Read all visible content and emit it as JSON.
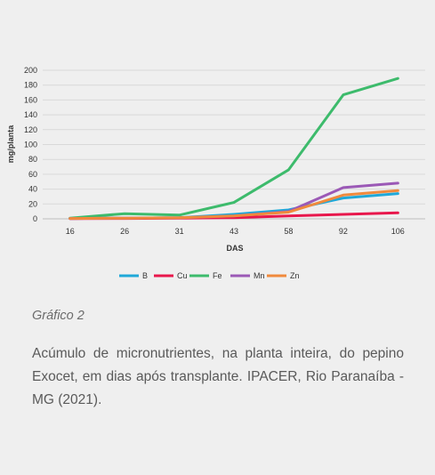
{
  "chart_data": {
    "type": "line",
    "categories": [
      "16",
      "26",
      "31",
      "43",
      "58",
      "92",
      "106"
    ],
    "xlabel": "DAS",
    "ylabel": "mg/planta",
    "ylim": [
      0,
      200
    ],
    "yticks": [
      0,
      20,
      40,
      60,
      80,
      100,
      120,
      140,
      160,
      180,
      200
    ],
    "grid": true,
    "legend_position": "bottom",
    "series": [
      {
        "name": "B",
        "color": "#1fa8d8",
        "values": [
          0.5,
          1,
          1.5,
          6,
          12,
          28,
          34
        ]
      },
      {
        "name": "Cu",
        "color": "#e8174c",
        "values": [
          0.3,
          0.5,
          0.8,
          1.5,
          4,
          6,
          8
        ]
      },
      {
        "name": "Fe",
        "color": "#3dbb6c",
        "values": [
          1,
          7,
          5,
          22,
          66,
          167,
          189
        ]
      },
      {
        "name": "Mn",
        "color": "#9b59b6",
        "values": [
          0.5,
          1,
          1.5,
          4,
          10,
          42,
          48
        ]
      },
      {
        "name": "Zn",
        "color": "#f08a3c",
        "values": [
          0.5,
          1,
          1.5,
          4,
          9,
          32,
          38
        ]
      }
    ]
  },
  "caption": {
    "title": "Gráfico 2",
    "text": "Acúmulo de micronutrientes, na planta inteira, do pepino Exocet, em dias após transplante. IPACER, Rio Paranaíba -MG (2021)."
  }
}
